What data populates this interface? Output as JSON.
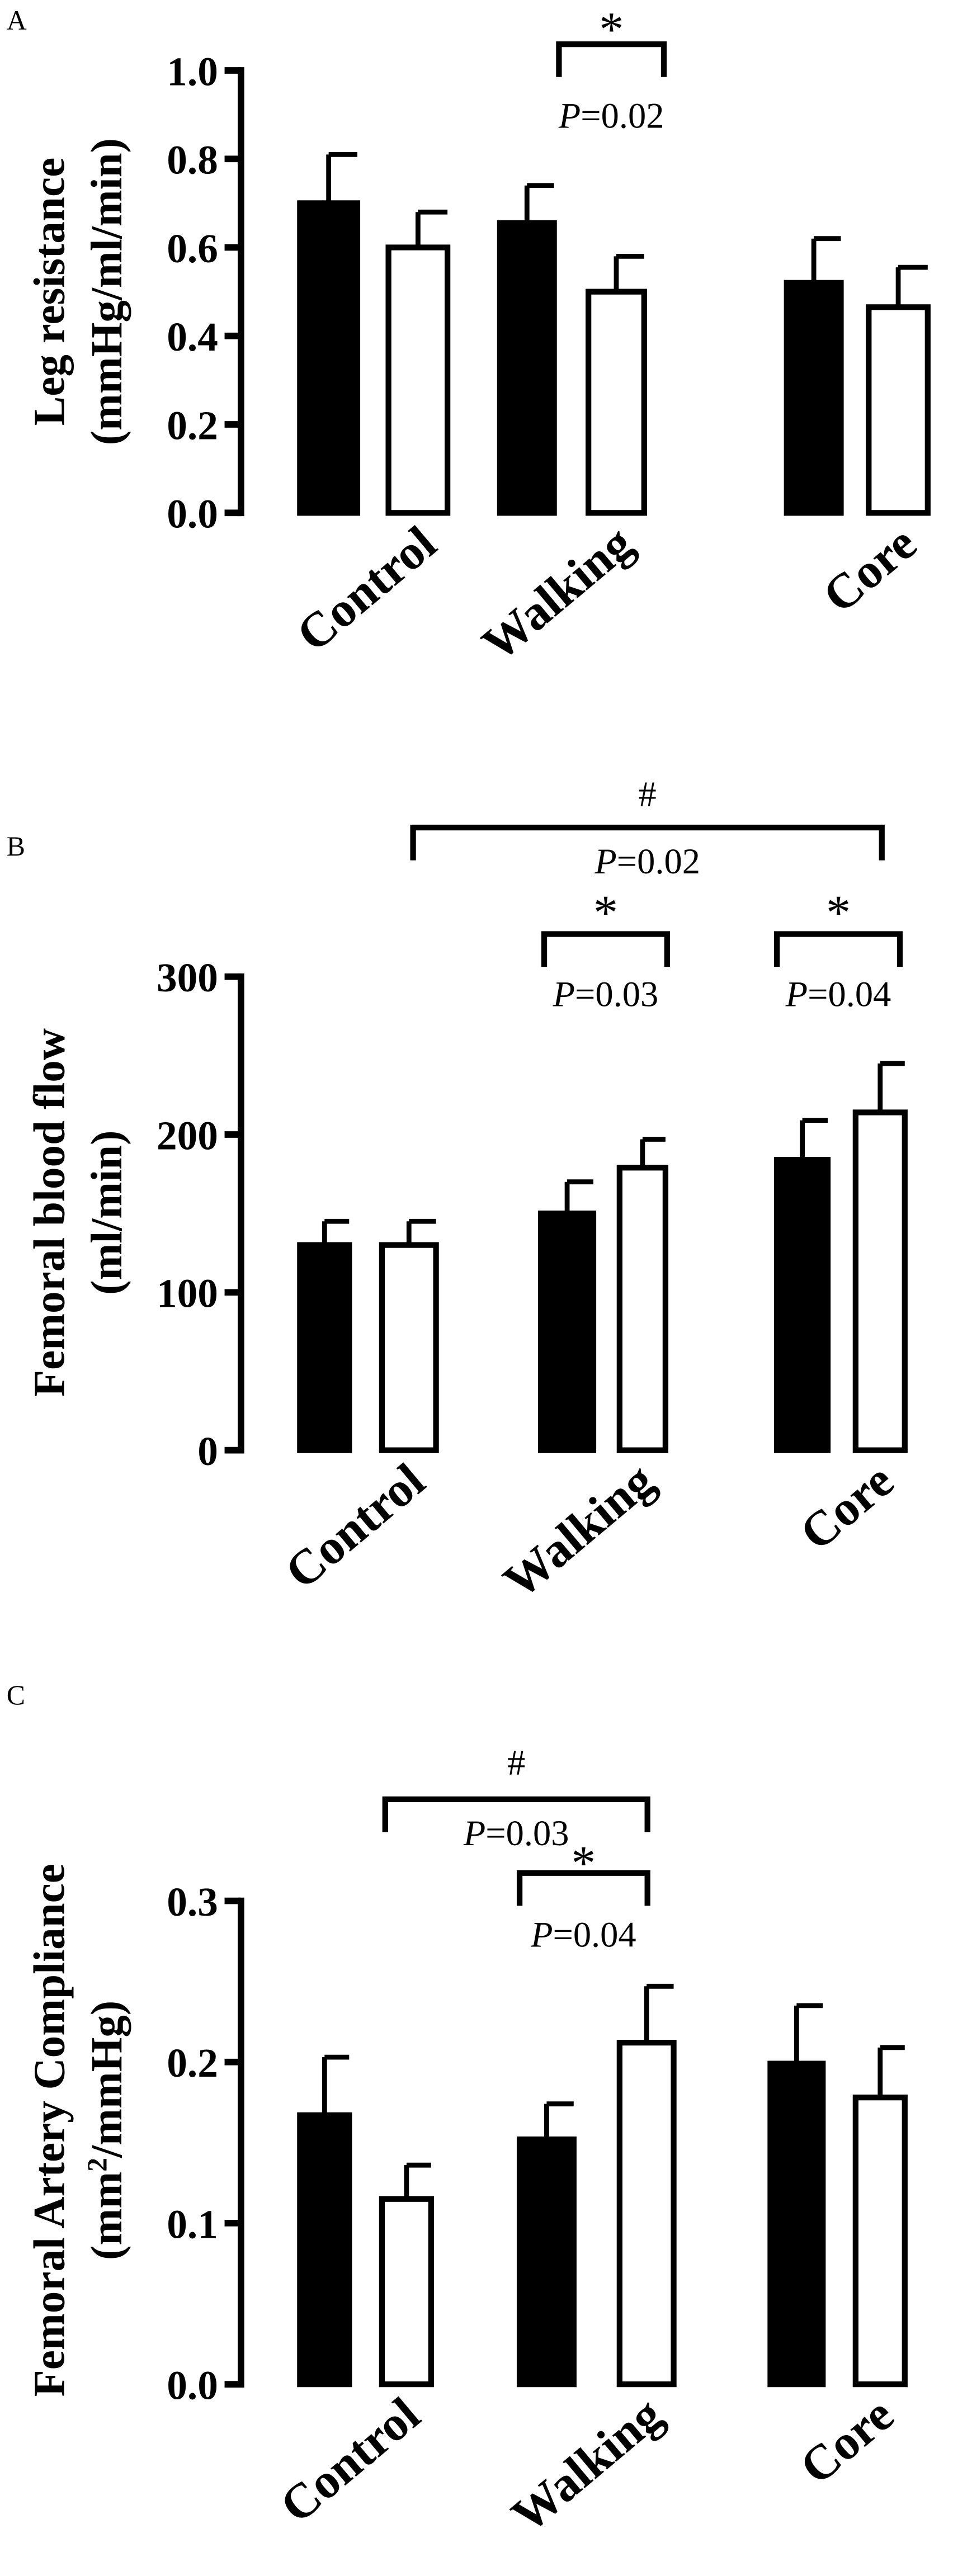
{
  "chart_data": [
    {
      "type": "bar",
      "panel_label": "A",
      "ylabel_lines": [
        "Leg resistance",
        "(mmHg/ml/min)"
      ],
      "ylim": [
        0,
        1.0
      ],
      "yticks": [
        "0.0",
        "0.2",
        "0.4",
        "0.6",
        "0.8",
        "1.0"
      ],
      "categories": [
        "Control",
        "Walking",
        "Core"
      ],
      "series": [
        {
          "fill": "#000000",
          "values": [
            0.7,
            0.655,
            0.52
          ],
          "error": [
            0.11,
            0.085,
            0.1
          ]
        },
        {
          "fill": "#ffffff",
          "values": [
            0.6,
            0.5,
            0.465
          ],
          "error": [
            0.08,
            0.08,
            0.09
          ]
        }
      ],
      "annotations": [
        {
          "symbol": "*",
          "text": "P=0.02",
          "p_letter": "P",
          "p_value": "=0.02",
          "between": "Walking pre vs post"
        }
      ]
    },
    {
      "type": "bar",
      "panel_label": "B",
      "ylabel_lines": [
        "Femoral blood flow",
        "(ml/min)"
      ],
      "ylim": [
        0,
        300
      ],
      "yticks": [
        "0",
        "100",
        "200",
        "300"
      ],
      "categories": [
        "Control",
        "Walking",
        "Core"
      ],
      "series": [
        {
          "fill": "#000000",
          "values": [
            130,
            150,
            184
          ],
          "error": [
            15,
            20,
            25
          ]
        },
        {
          "fill": "#ffffff",
          "values": [
            130,
            179,
            214
          ],
          "error": [
            15,
            18,
            31
          ]
        }
      ],
      "annotations": [
        {
          "symbol": "#",
          "p_letter": "P",
          "p_value": "=0.02",
          "between": "Control vs Core"
        },
        {
          "symbol": "*",
          "p_letter": "P",
          "p_value": "=0.03",
          "between": "Walking pre vs post"
        },
        {
          "symbol": "*",
          "p_letter": "P",
          "p_value": "=0.04",
          "between": "Core pre vs post"
        }
      ]
    },
    {
      "type": "bar",
      "panel_label": "C",
      "ylabel_lines": [
        "Femoral Artery Compliance",
        "(mm²/mmHg)"
      ],
      "ylim": [
        0,
        0.3
      ],
      "yticks": [
        "0.0",
        "0.1",
        "0.2",
        "0.3"
      ],
      "categories": [
        "Control",
        "Walking",
        "Core"
      ],
      "series": [
        {
          "fill": "#000000",
          "values": [
            0.167,
            0.152,
            0.199
          ],
          "error": [
            0.036,
            0.022,
            0.036
          ]
        },
        {
          "fill": "#ffffff",
          "values": [
            0.115,
            0.212,
            0.178
          ],
          "error": [
            0.021,
            0.035,
            0.031
          ]
        }
      ],
      "annotations": [
        {
          "symbol": "#",
          "p_letter": "P",
          "p_value": "=0.03",
          "between": "Control vs Walking"
        },
        {
          "symbol": "*",
          "p_letter": "P",
          "p_value": "=0.04",
          "between": "Walking pre vs post"
        }
      ]
    }
  ]
}
